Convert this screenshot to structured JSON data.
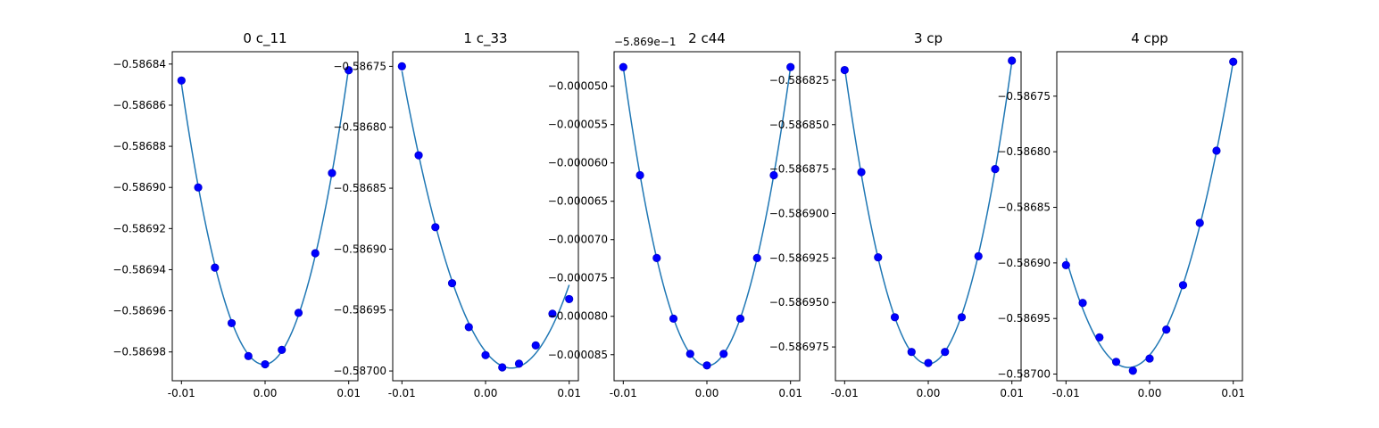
{
  "chart_data": [
    {
      "type": "scatter",
      "title": "0 c_11",
      "x": [
        -0.01,
        -0.008,
        -0.006,
        -0.004,
        -0.002,
        0.0,
        0.002,
        0.004,
        0.006,
        0.008,
        0.01
      ],
      "values": [
        -0.586848,
        -0.5869,
        -0.586939,
        -0.586966,
        -0.586982,
        -0.586986,
        -0.586979,
        -0.586961,
        -0.586932,
        -0.586893,
        -0.586843
      ],
      "xlim": [
        -0.0111,
        0.0111
      ],
      "ylim": [
        -0.586994,
        -0.586834
      ],
      "xticks": [
        -0.01,
        0.0,
        0.01
      ],
      "xtick_labels": [
        "-0.01",
        "0.00",
        "0.01"
      ],
      "yticks": [
        -0.58684,
        -0.58686,
        -0.58688,
        -0.5869,
        -0.58692,
        -0.58694,
        -0.58696,
        -0.58698
      ],
      "ytick_labels": [
        "−0.58684",
        "−0.58686",
        "−0.58688",
        "−0.58690",
        "−0.58692",
        "−0.58694",
        "−0.58696",
        "−0.58698"
      ],
      "offset_label": "",
      "fit_curve": true,
      "grid": false
    },
    {
      "type": "scatter",
      "title": "1 c_33",
      "x": [
        -0.01,
        -0.008,
        -0.006,
        -0.004,
        -0.002,
        0.0,
        0.002,
        0.004,
        0.006,
        0.008,
        0.01
      ],
      "values": [
        -0.58675,
        -0.586823,
        -0.586882,
        -0.586928,
        -0.586964,
        -0.586987,
        -0.586997,
        -0.586994,
        -0.586979,
        -0.586953,
        -0.586941
      ],
      "xlim": [
        -0.0111,
        0.0111
      ],
      "ylim": [
        -0.587008,
        -0.586738
      ],
      "xticks": [
        -0.01,
        0.0,
        0.01
      ],
      "xtick_labels": [
        "-0.01",
        "0.00",
        "0.01"
      ],
      "yticks": [
        -0.58675,
        -0.5868,
        -0.58685,
        -0.5869,
        -0.58695,
        -0.587
      ],
      "ytick_labels": [
        "−0.58675",
        "−0.58680",
        "−0.58685",
        "−0.58690",
        "−0.58695",
        "−0.58700"
      ],
      "offset_label": "",
      "fit_curve": true,
      "grid": false
    },
    {
      "type": "scatter",
      "title": "2 c44",
      "x": [
        -0.01,
        -0.008,
        -0.006,
        -0.004,
        -0.002,
        0.0,
        0.002,
        0.004,
        0.006,
        0.008,
        0.01
      ],
      "values": [
        -4.75e-05,
        -6.16e-05,
        -7.24e-05,
        -8.03e-05,
        -8.49e-05,
        -8.64e-05,
        -8.49e-05,
        -8.03e-05,
        -7.24e-05,
        -6.16e-05,
        -4.75e-05
      ],
      "xlim": [
        -0.0111,
        0.0111
      ],
      "ylim": [
        -8.84e-05,
        -4.55e-05
      ],
      "xticks": [
        -0.01,
        0.0,
        0.01
      ],
      "xtick_labels": [
        "-0.01",
        "0.00",
        "0.01"
      ],
      "yticks": [
        -5e-05,
        -5.5e-05,
        -6e-05,
        -6.5e-05,
        -7e-05,
        -7.5e-05,
        -8e-05,
        -8.5e-05
      ],
      "ytick_labels": [
        "−0.000050",
        "−0.000055",
        "−0.000060",
        "−0.000065",
        "−0.000070",
        "−0.000075",
        "−0.000080",
        "−0.000085"
      ],
      "offset_label": "−5.869e−1",
      "fit_curve": true,
      "grid": false
    },
    {
      "type": "scatter",
      "title": "3 cp",
      "x": [
        -0.01,
        -0.008,
        -0.006,
        -0.004,
        -0.002,
        0.0,
        0.002,
        0.004,
        0.006,
        0.008,
        0.01
      ],
      "values": [
        -0.5868193,
        -0.5868767,
        -0.5869246,
        -0.5869583,
        -0.5869778,
        -0.586984,
        -0.5869778,
        -0.5869583,
        -0.586924,
        -0.586875,
        -0.586814
      ],
      "xlim": [
        -0.0111,
        0.0111
      ],
      "ylim": [
        -0.586994,
        -0.586809
      ],
      "xticks": [
        -0.01,
        0.0,
        0.01
      ],
      "xtick_labels": [
        "-0.01",
        "0.00",
        "0.01"
      ],
      "yticks": [
        -0.586825,
        -0.58685,
        -0.586875,
        -0.5869,
        -0.586925,
        -0.58695,
        -0.586975
      ],
      "ytick_labels": [
        "−0.586825",
        "−0.586850",
        "−0.586875",
        "−0.586900",
        "−0.586925",
        "−0.586950",
        "−0.586975"
      ],
      "offset_label": "",
      "fit_curve": true,
      "grid": false
    },
    {
      "type": "scatter",
      "title": "4 cpp",
      "x": [
        -0.01,
        -0.008,
        -0.006,
        -0.004,
        -0.002,
        0.0,
        0.002,
        0.004,
        0.006,
        0.008,
        0.01
      ],
      "values": [
        -0.586902,
        -0.586936,
        -0.586967,
        -0.586989,
        -0.586997,
        -0.586986,
        -0.58696,
        -0.58692,
        -0.586864,
        -0.586799,
        -0.586719
      ],
      "xlim": [
        -0.0111,
        0.0111
      ],
      "ylim": [
        -0.587006,
        -0.58671
      ],
      "xticks": [
        -0.01,
        0.0,
        0.01
      ],
      "xtick_labels": [
        "-0.01",
        "0.00",
        "0.01"
      ],
      "yticks": [
        -0.58675,
        -0.5868,
        -0.58685,
        -0.5869,
        -0.58695,
        -0.587
      ],
      "ytick_labels": [
        "−0.58675",
        "−0.58680",
        "−0.58685",
        "−0.58690",
        "−0.58695",
        "−0.58700"
      ],
      "offset_label": "",
      "fit_curve": true,
      "grid": false
    }
  ]
}
